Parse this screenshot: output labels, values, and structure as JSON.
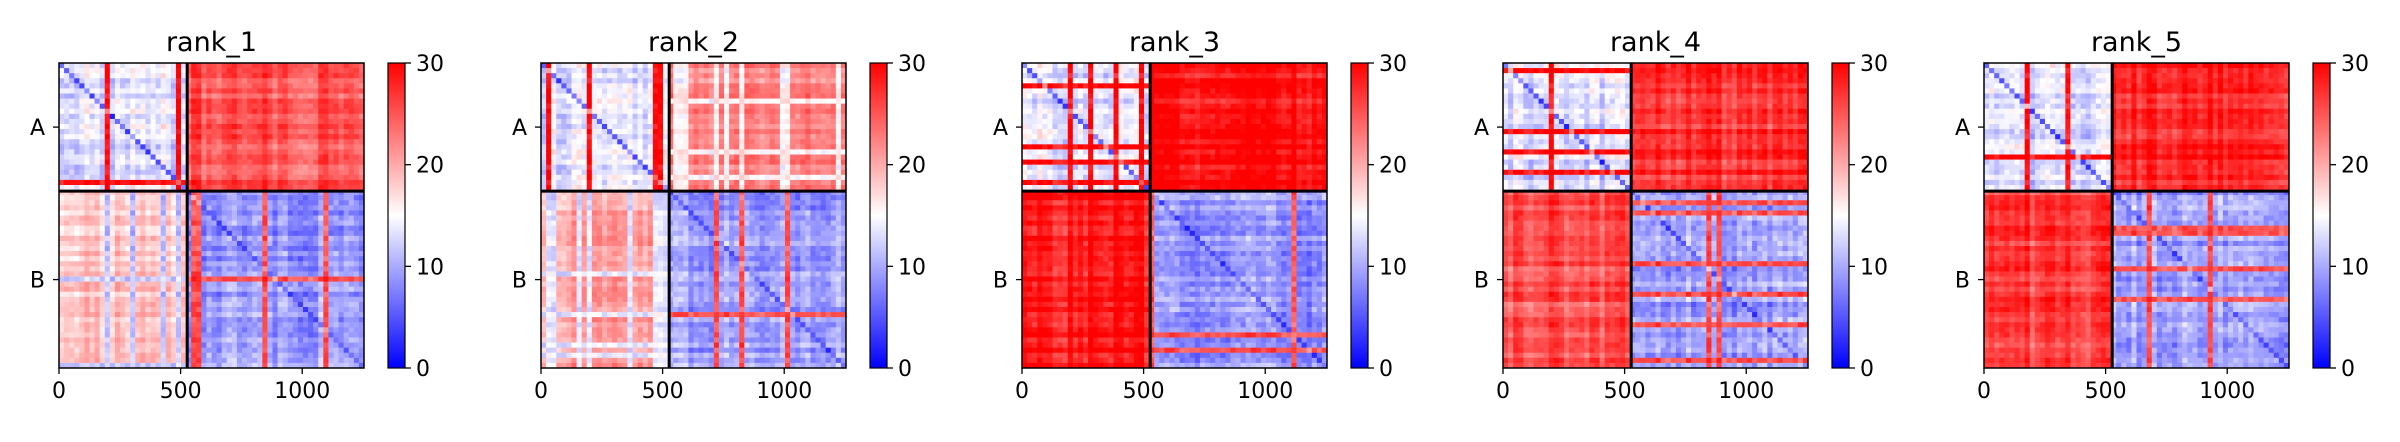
{
  "chart_data": [
    {
      "type": "heatmap",
      "title": "rank_1",
      "xlabel": "",
      "ylabel": "",
      "xlim": [
        0,
        1254
      ],
      "x_ticks": [
        "0",
        "500",
        "1000"
      ],
      "x_tick_values": [
        0,
        500,
        1000
      ],
      "chain_labels": [
        "A",
        "B"
      ],
      "chain_lengths": [
        527,
        727
      ],
      "colorbar_ticks": [
        "0",
        "10",
        "20",
        "30"
      ],
      "colorbar_tick_values": [
        0,
        10,
        20,
        30
      ],
      "value_range": [
        0,
        30
      ],
      "colormap": [
        "#0000ff",
        "#ffffff",
        "#ff0000"
      ],
      "block_mean_values": [
        [
          8,
          26
        ],
        [
          20,
          4
        ]
      ]
    },
    {
      "type": "heatmap",
      "title": "rank_2",
      "xlabel": "",
      "ylabel": "",
      "xlim": [
        0,
        1254
      ],
      "x_ticks": [
        "0",
        "500",
        "1000"
      ],
      "x_tick_values": [
        0,
        500,
        1000
      ],
      "chain_labels": [
        "A",
        "B"
      ],
      "chain_lengths": [
        527,
        727
      ],
      "colorbar_ticks": [
        "0",
        "10",
        "20",
        "30"
      ],
      "colorbar_tick_values": [
        0,
        10,
        20,
        30
      ],
      "value_range": [
        0,
        30
      ],
      "colormap": [
        "#0000ff",
        "#ffffff",
        "#ff0000"
      ],
      "block_mean_values": [
        [
          8,
          24
        ],
        [
          22,
          4
        ]
      ]
    },
    {
      "type": "heatmap",
      "title": "rank_3",
      "xlabel": "",
      "ylabel": "",
      "xlim": [
        0,
        1254
      ],
      "x_ticks": [
        "0",
        "500",
        "1000"
      ],
      "x_tick_values": [
        0,
        500,
        1000
      ],
      "chain_labels": [
        "A",
        "B"
      ],
      "chain_lengths": [
        527,
        727
      ],
      "colorbar_ticks": [
        "0",
        "10",
        "20",
        "30"
      ],
      "colorbar_tick_values": [
        0,
        10,
        20,
        30
      ],
      "value_range": [
        0,
        30
      ],
      "colormap": [
        "#0000ff",
        "#ffffff",
        "#ff0000"
      ],
      "block_mean_values": [
        [
          8,
          30
        ],
        [
          30,
          4
        ]
      ]
    },
    {
      "type": "heatmap",
      "title": "rank_4",
      "xlabel": "",
      "ylabel": "",
      "xlim": [
        0,
        1254
      ],
      "x_ticks": [
        "0",
        "500",
        "1000"
      ],
      "x_tick_values": [
        0,
        500,
        1000
      ],
      "chain_labels": [
        "A",
        "B"
      ],
      "chain_lengths": [
        527,
        727
      ],
      "colorbar_ticks": [
        "0",
        "10",
        "20",
        "30"
      ],
      "colorbar_tick_values": [
        0,
        10,
        20,
        30
      ],
      "value_range": [
        0,
        30
      ],
      "colormap": [
        "#0000ff",
        "#ffffff",
        "#ff0000"
      ],
      "block_mean_values": [
        [
          8,
          28
        ],
        [
          26,
          4
        ]
      ]
    },
    {
      "type": "heatmap",
      "title": "rank_5",
      "xlabel": "",
      "ylabel": "",
      "xlim": [
        0,
        1254
      ],
      "x_ticks": [
        "0",
        "500",
        "1000"
      ],
      "x_tick_values": [
        0,
        500,
        1000
      ],
      "chain_labels": [
        "A",
        "B"
      ],
      "chain_lengths": [
        527,
        727
      ],
      "colorbar_ticks": [
        "0",
        "10",
        "20",
        "30"
      ],
      "colorbar_tick_values": [
        0,
        10,
        20,
        30
      ],
      "value_range": [
        0,
        30
      ],
      "colormap": [
        "#0000ff",
        "#ffffff",
        "#ff0000"
      ],
      "block_mean_values": [
        [
          8,
          29
        ],
        [
          27,
          4
        ]
      ]
    }
  ]
}
